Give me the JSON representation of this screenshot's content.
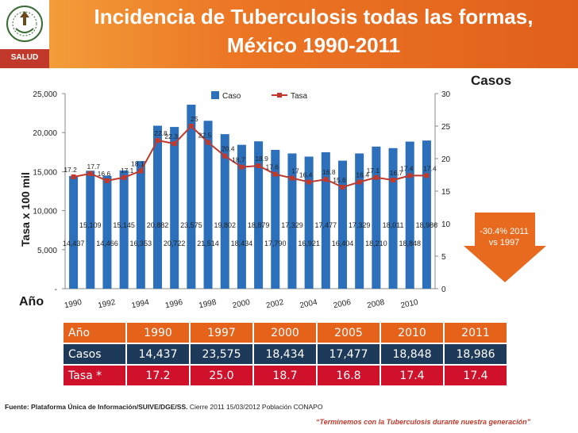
{
  "header": {
    "title_line1": "Incidencia de Tuberculosis todas las formas,",
    "title_line2": "México 1990-2011",
    "logo_text": "SALUD"
  },
  "labels": {
    "casos": "Casos",
    "yaxis_title": "Tasa x 100 mil",
    "ano": "Año",
    "change_line1": "-30.4% 2011",
    "change_line2": "vs 1997"
  },
  "colors": {
    "bar": "#2c6fba",
    "line": "#c0392b",
    "header_orange": "#e96b20",
    "arrow": "#e86a1e"
  },
  "chart_data": {
    "type": "bar",
    "x": [
      1990,
      1991,
      1992,
      1993,
      1994,
      1995,
      1996,
      1997,
      1998,
      1999,
      2000,
      2001,
      2002,
      2003,
      2004,
      2005,
      2006,
      2007,
      2008,
      2009,
      2010,
      2011
    ],
    "x_tick_labels": [
      "1990",
      "1992",
      "1994",
      "1996",
      "1998",
      "2000",
      "2002",
      "2004",
      "2006",
      "2008",
      "2010"
    ],
    "series": [
      {
        "name": "Caso",
        "type": "bar",
        "axis": "left",
        "values": [
          14437,
          15109,
          14466,
          15145,
          16353,
          20882,
          20722,
          23575,
          21514,
          19802,
          18434,
          18879,
          17790,
          17329,
          16921,
          17477,
          16404,
          17329,
          18210,
          18011,
          18848,
          18986
        ],
        "labels": [
          "14,437",
          "15,109",
          "14,466",
          "15,145",
          "16,353",
          "20,882",
          "20,722",
          "23,575",
          "21,514",
          "19,802",
          "18,434",
          "18,879",
          "17,790",
          "17,329",
          "16,921",
          "17,477",
          "16,404",
          "17,329",
          "18,210",
          "18,011",
          "18,848",
          "18,986"
        ]
      },
      {
        "name": "Tasa",
        "type": "line",
        "axis": "right",
        "values": [
          17.2,
          17.7,
          16.6,
          17.1,
          18.1,
          22.8,
          22.3,
          25,
          22.5,
          20.4,
          18.7,
          18.9,
          17.6,
          17,
          16.4,
          16.8,
          15.6,
          16.4,
          17.1,
          16.7,
          17.4,
          17.4
        ],
        "labels": [
          "17.2",
          "17.7",
          "16.6",
          "17.1",
          "18.1",
          "22.8",
          "22.3",
          "25",
          "22.5",
          "20.4",
          "18.7",
          "18.9",
          "17.6",
          "17",
          "16.4",
          "16.8",
          "15.6",
          "16.4",
          "17.1",
          "16.7",
          "17.4",
          "17.4"
        ]
      }
    ],
    "y_left": {
      "min": 0,
      "max": 25000,
      "ticks": [
        "-",
        "5,000",
        "10,000",
        "15,000",
        "20,000",
        "25,000"
      ]
    },
    "y_right": {
      "min": 0,
      "max": 30,
      "ticks": [
        "0",
        "5",
        "10",
        "15",
        "20",
        "25",
        "30"
      ]
    },
    "legend": {
      "position": "top-center"
    },
    "grid": false
  },
  "table": {
    "headers": [
      "Año",
      "1990",
      "1997",
      "2000",
      "2005",
      "2010",
      "2011"
    ],
    "casos": [
      "Casos",
      "14,437",
      "23,575",
      "18,434",
      "17,477",
      "18,848",
      "18,986"
    ],
    "tasa": [
      "Tasa *",
      "17.2",
      "25.0",
      "18.7",
      "16.8",
      "17.4",
      "17.4"
    ]
  },
  "footer": {
    "source_bold": "Fuente: Plataforma Única de Información/SUIVE/DGE/SS.",
    "source_rest": " Cierre 2011 15/03/2012 Población CONAPO",
    "slogan": "“Terminemos con la Tuberculosis durante nuestra generación”"
  }
}
